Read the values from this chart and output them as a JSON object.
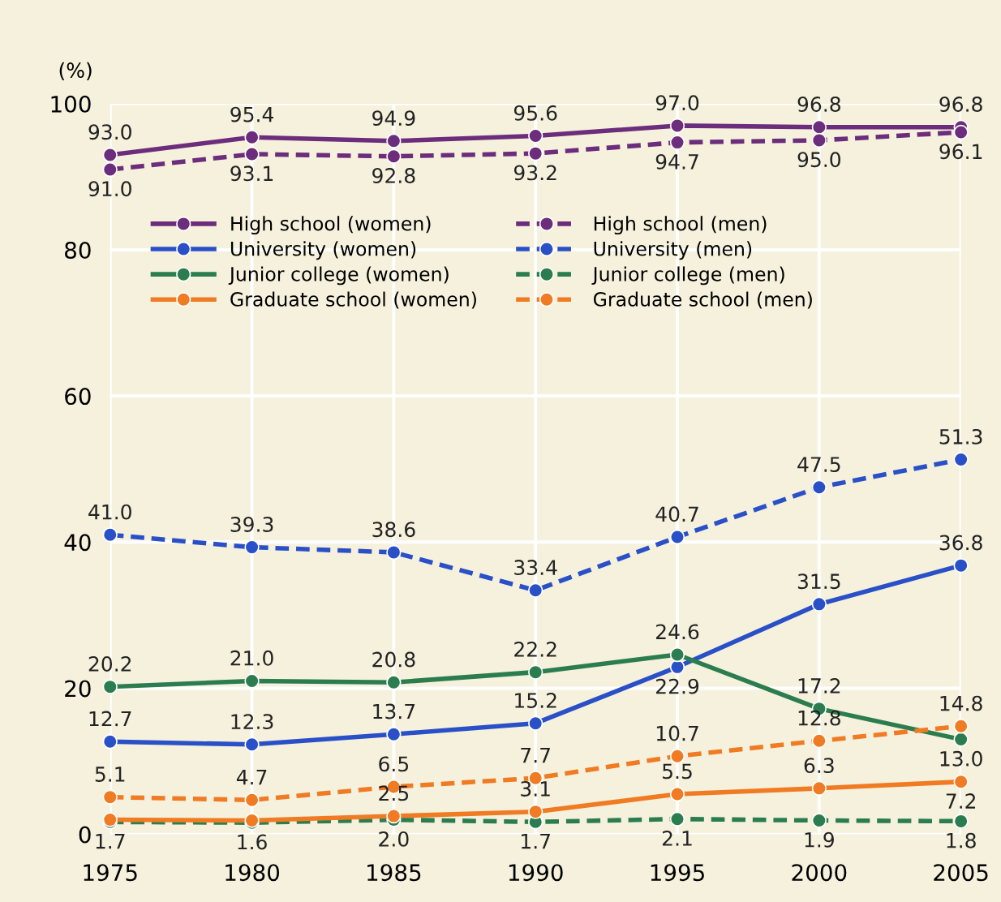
{
  "chart_data": {
    "type": "line",
    "ylabel": "(%)",
    "x": [
      1975,
      1980,
      1985,
      1990,
      1995,
      2000,
      2005
    ],
    "xlim": [
      1975,
      2005
    ],
    "xticks": [
      1975,
      1980,
      1985,
      1990,
      1995,
      2000,
      2005
    ],
    "ylim": [
      0,
      100
    ],
    "yticks": [
      0,
      20,
      40,
      60,
      80,
      100
    ],
    "grid": true,
    "legend": "top left",
    "marker": "circle",
    "series": [
      {
        "name": "High school (women)",
        "color": "#6b2d7c",
        "line_style": "solid",
        "values": [
          93.0,
          95.4,
          94.9,
          95.6,
          97.0,
          96.8,
          96.8
        ],
        "value_labels": [
          "93.0",
          "95.4",
          "94.9",
          "95.6",
          "97.0",
          "96.8",
          "96.8"
        ]
      },
      {
        "name": "High school (men)",
        "color": "#6b2d7c",
        "line_style": "dashed",
        "values": [
          91.0,
          93.1,
          92.8,
          93.2,
          94.7,
          95.0,
          96.1
        ],
        "value_labels": [
          "91.0",
          "93.1",
          "92.8",
          "93.2",
          "94.7",
          "95.0",
          "96.1"
        ]
      },
      {
        "name": "University (women)",
        "color": "#2a50c8",
        "line_style": "solid",
        "values": [
          12.7,
          12.3,
          13.7,
          15.2,
          22.9,
          31.5,
          36.8
        ],
        "value_labels": [
          "12.7",
          "12.3",
          "13.7",
          "15.2",
          "22.9",
          "31.5",
          "36.8"
        ]
      },
      {
        "name": "University (men)",
        "color": "#2a50c8",
        "line_style": "dashed",
        "values": [
          41.0,
          39.3,
          38.6,
          33.4,
          40.7,
          47.5,
          51.3
        ],
        "value_labels": [
          "41.0",
          "39.3",
          "38.6",
          "33.4",
          "40.7",
          "47.5",
          "51.3"
        ]
      },
      {
        "name": "Junior college (women)",
        "color": "#2b7d4f",
        "line_style": "solid",
        "values": [
          20.2,
          21.0,
          20.8,
          22.2,
          24.6,
          17.2,
          13.0
        ],
        "value_labels": [
          "20.2",
          "21.0",
          "20.8",
          "22.2",
          "24.6",
          "17.2",
          "13.0"
        ]
      },
      {
        "name": "Junior college (men)",
        "color": "#2b7d4f",
        "line_style": "dashed",
        "values": [
          1.7,
          1.6,
          2.0,
          1.7,
          2.1,
          1.9,
          1.8
        ],
        "value_labels": [
          "1.7",
          "1.6",
          "2.0",
          "1.7",
          "2.1",
          "1.9",
          "1.8"
        ]
      },
      {
        "name": "Graduate school (women)",
        "color": "#f07b22",
        "line_style": "solid",
        "values": [
          2.0,
          1.9,
          2.5,
          3.1,
          5.5,
          6.3,
          7.2
        ],
        "value_labels": [
          null,
          null,
          "2.5",
          "3.1",
          "5.5",
          "6.3",
          "7.2"
        ]
      },
      {
        "name": "Graduate school (men)",
        "color": "#f07b22",
        "line_style": "dashed",
        "values": [
          5.1,
          4.7,
          6.5,
          7.7,
          10.7,
          12.8,
          14.8
        ],
        "value_labels": [
          "5.1",
          "4.7",
          "6.5",
          "7.7",
          "10.7",
          "12.8",
          "14.8"
        ]
      }
    ]
  }
}
